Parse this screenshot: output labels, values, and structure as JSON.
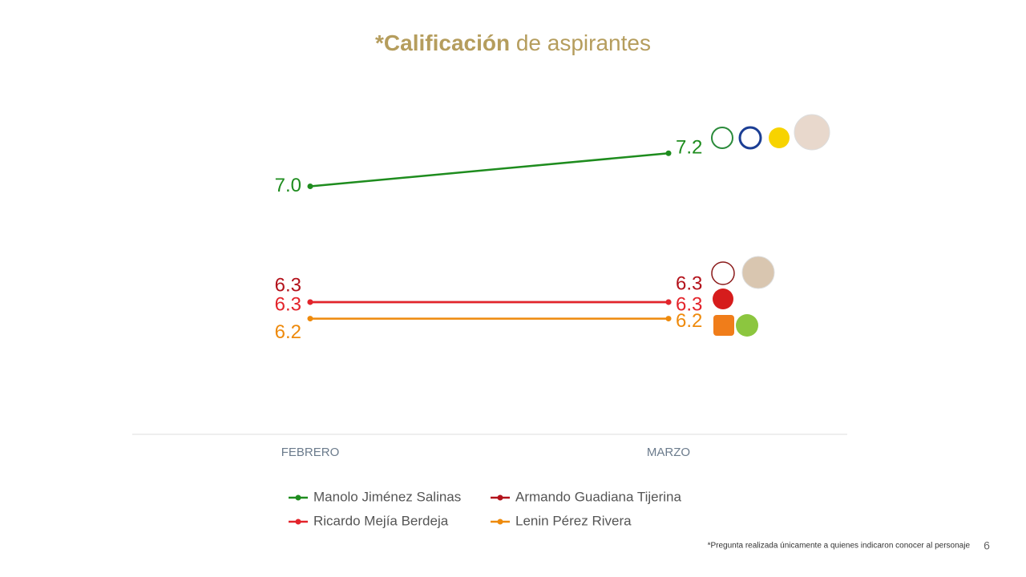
{
  "chart_data": {
    "type": "line",
    "title": {
      "bold": "*Calificación",
      "rest": "de aspirantes"
    },
    "categories": [
      "FEBRERO",
      "MARZO"
    ],
    "ylim": [
      5.5,
      7.4
    ],
    "series": [
      {
        "name": "Manolo Jiménez Salinas",
        "color": "#1e8c1e",
        "values": [
          7.0,
          7.2
        ],
        "value_labels": [
          "7.0",
          "7.2"
        ]
      },
      {
        "name": "Armando Guadiana Tijerina",
        "color": "#b3121b",
        "values": [
          6.3,
          6.3
        ]
      },
      {
        "name": "Ricardo Mejía Berdeja",
        "color": "#e3242b",
        "values": [
          6.3,
          6.3
        ]
      },
      {
        "name": "Lenin Pérez Rivera",
        "color": "#ee8a0c",
        "values": [
          6.2,
          6.2
        ]
      }
    ]
  },
  "footnote": "*Pregunta realizada únicamente a quienes indicaron conocer al personaje",
  "page_number": 6
}
